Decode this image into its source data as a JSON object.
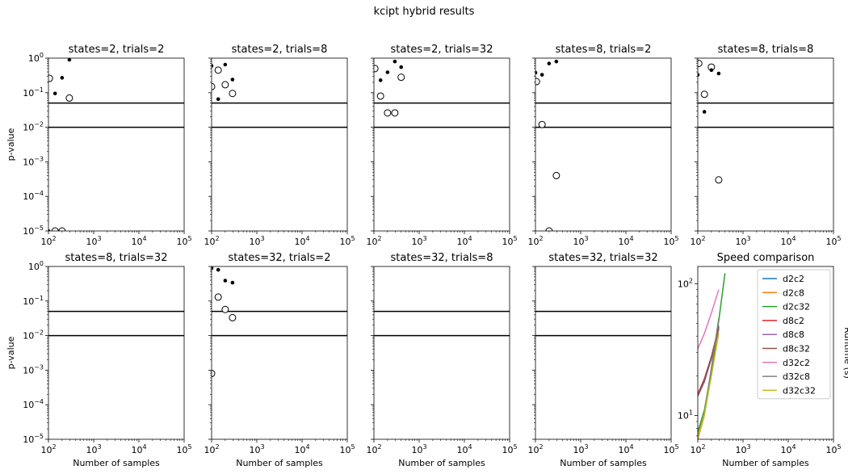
{
  "suptitle": "kcipt hybrid results",
  "xlabel": "Number of samples",
  "ylabel_pvalue": "p-value",
  "ylabel_runtime": "Runtime (s)",
  "xticks": [
    "10",
    "10",
    "10",
    "10"
  ],
  "colors": {
    "d2c2": "#1f77b4",
    "d2c8": "#ff7f0e",
    "d2c32": "#2ca02c",
    "d8c2": "#d62728",
    "d8c8": "#9467bd",
    "d8c32": "#8c564b",
    "d32c2": "#e377c2",
    "d32c8": "#7f7f7f",
    "d32c32": "#bcbd22"
  },
  "chart_data": [
    {
      "type": "scatter",
      "title": "states=2, trials=2",
      "xscale": "log",
      "yscale": "log",
      "xlim": [
        100,
        100000
      ],
      "ylim": [
        1e-05,
        1
      ],
      "hlines": [
        0.05,
        0.01
      ],
      "filled": [
        [
          100,
          1e-05
        ],
        [
          140,
          0.095
        ],
        [
          200,
          0.27
        ],
        [
          290,
          0.9
        ]
      ],
      "open": [
        [
          105,
          0.26
        ],
        [
          140,
          1e-05
        ],
        [
          200,
          1e-05
        ],
        [
          290,
          0.07
        ]
      ]
    },
    {
      "type": "scatter",
      "title": "states=2, trials=8",
      "xscale": "log",
      "yscale": "log",
      "xlim": [
        100,
        100000
      ],
      "ylim": [
        1e-05,
        1
      ],
      "hlines": [
        0.05,
        0.01
      ],
      "filled": [
        [
          100,
          0.6
        ],
        [
          140,
          0.065
        ],
        [
          200,
          0.65
        ],
        [
          290,
          0.24
        ]
      ],
      "open": [
        [
          100,
          0.15
        ],
        [
          140,
          0.45
        ],
        [
          200,
          0.17
        ],
        [
          290,
          0.095
        ]
      ]
    },
    {
      "type": "scatter",
      "title": "states=2, trials=32",
      "xscale": "log",
      "yscale": "log",
      "xlim": [
        100,
        100000
      ],
      "ylim": [
        1e-05,
        1
      ],
      "hlines": [
        0.05,
        0.01
      ],
      "filled": [
        [
          140,
          0.23
        ],
        [
          200,
          0.39
        ],
        [
          290,
          0.8
        ],
        [
          400,
          0.55
        ]
      ],
      "open": [
        [
          105,
          0.5
        ],
        [
          140,
          0.08
        ],
        [
          200,
          0.026
        ],
        [
          290,
          0.026
        ],
        [
          400,
          0.28
        ]
      ]
    },
    {
      "type": "scatter",
      "title": "states=8, trials=2",
      "xscale": "log",
      "yscale": "log",
      "xlim": [
        100,
        100000
      ],
      "ylim": [
        1e-05,
        1
      ],
      "hlines": [
        0.05,
        0.01
      ],
      "filled": [
        [
          100,
          0.38
        ],
        [
          140,
          0.33
        ],
        [
          200,
          0.7
        ],
        [
          290,
          0.8
        ]
      ],
      "open": [
        [
          105,
          0.21
        ],
        [
          140,
          0.012
        ],
        [
          200,
          1e-05
        ],
        [
          290,
          0.0004
        ]
      ]
    },
    {
      "type": "scatter",
      "title": "states=8, trials=8",
      "xscale": "log",
      "yscale": "log",
      "xlim": [
        100,
        100000
      ],
      "ylim": [
        1e-05,
        1
      ],
      "hlines": [
        0.05,
        0.01
      ],
      "filled": [
        [
          100,
          0.33
        ],
        [
          140,
          0.028
        ],
        [
          200,
          0.45
        ],
        [
          290,
          0.36
        ]
      ],
      "open": [
        [
          105,
          0.7
        ],
        [
          140,
          0.09
        ],
        [
          200,
          0.55
        ],
        [
          290,
          0.0003
        ]
      ]
    },
    {
      "type": "scatter",
      "title": "states=8, trials=32",
      "xscale": "log",
      "yscale": "log",
      "xlim": [
        100,
        100000
      ],
      "ylim": [
        1e-05,
        1
      ],
      "hlines": [
        0.05,
        0.01
      ],
      "filled": [],
      "open": []
    },
    {
      "type": "scatter",
      "title": "states=32, trials=2",
      "xscale": "log",
      "yscale": "log",
      "xlim": [
        100,
        100000
      ],
      "ylim": [
        1e-05,
        1
      ],
      "hlines": [
        0.05,
        0.01
      ],
      "filled": [
        [
          100,
          0.9
        ],
        [
          140,
          0.8
        ],
        [
          200,
          0.39
        ],
        [
          290,
          0.34
        ]
      ],
      "open": [
        [
          100,
          0.0008
        ],
        [
          140,
          0.13
        ],
        [
          200,
          0.057
        ],
        [
          290,
          0.033
        ]
      ]
    },
    {
      "type": "scatter",
      "title": "states=32, trials=8",
      "xscale": "log",
      "yscale": "log",
      "xlim": [
        100,
        100000
      ],
      "ylim": [
        1e-05,
        1
      ],
      "hlines": [
        0.05,
        0.01
      ],
      "filled": [],
      "open": []
    },
    {
      "type": "scatter",
      "title": "states=32, trials=32",
      "xscale": "log",
      "yscale": "log",
      "xlim": [
        100,
        100000
      ],
      "ylim": [
        1e-05,
        1
      ],
      "hlines": [
        0.05,
        0.01
      ],
      "filled": [],
      "open": []
    },
    {
      "type": "line",
      "title": "Speed comparison",
      "xscale": "log",
      "yscale": "log",
      "xlim": [
        100,
        100000
      ],
      "ylim": [
        6.6,
        135
      ],
      "legend": "top-right",
      "series": [
        {
          "name": "d2c2",
          "x": [
            100,
            140,
            200,
            290
          ],
          "y": [
            6.8,
            10.5,
            22,
            48
          ]
        },
        {
          "name": "d2c8",
          "x": [
            100,
            140,
            200,
            290
          ],
          "y": [
            6.6,
            10,
            21,
            46
          ]
        },
        {
          "name": "d2c32",
          "x": [
            100,
            140,
            200,
            290,
            400
          ],
          "y": [
            7.5,
            11,
            22,
            52,
            120
          ]
        },
        {
          "name": "d8c2",
          "x": [
            100,
            140,
            200,
            290
          ],
          "y": [
            14.5,
            19,
            28,
            47
          ]
        },
        {
          "name": "d8c8",
          "x": [
            100,
            140,
            200,
            290
          ],
          "y": [
            14,
            18,
            27,
            45
          ]
        },
        {
          "name": "d8c32",
          "x": [
            100,
            140,
            200,
            290
          ],
          "y": [
            14.2,
            18.5,
            27.5,
            46
          ]
        },
        {
          "name": "d32c2",
          "x": [
            100,
            140,
            200,
            290
          ],
          "y": [
            32,
            42,
            60,
            90
          ]
        },
        {
          "name": "d32c8",
          "x": [
            100,
            140,
            200,
            290
          ],
          "y": [
            7,
            10.5,
            23,
            54
          ]
        },
        {
          "name": "d32c32",
          "x": [
            100,
            140,
            200,
            290
          ],
          "y": [
            6.8,
            10.2,
            20,
            42
          ]
        }
      ]
    }
  ]
}
